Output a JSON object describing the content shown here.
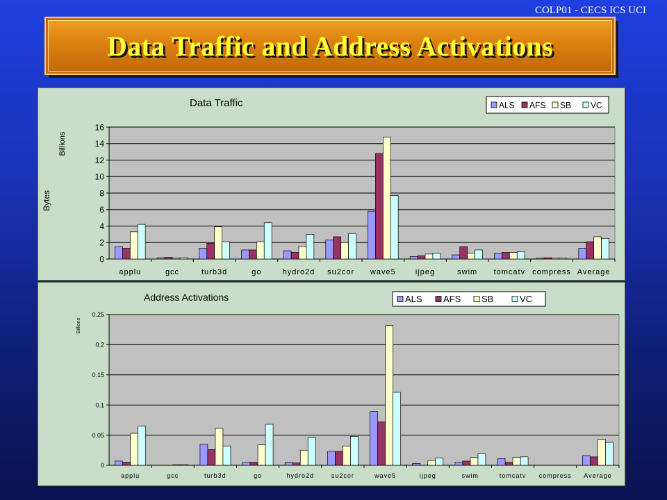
{
  "header_tag": "COLP01 - CECS ICS UCI",
  "slide_title": "Data Traffic and Address Activations",
  "colors": {
    "ALS": "#9999ff",
    "AFS": "#993366",
    "SB": "#ffffcc",
    "VC": "#ccffff",
    "plot_bg": "#c0c0c0",
    "panel_bg": "#c8dec8"
  },
  "chart_data": [
    {
      "type": "bar",
      "title": "Data Traffic",
      "ylabel": "Bytes",
      "yunit": "Billions",
      "ylim": [
        0,
        16
      ],
      "yticks": [
        "0",
        "2",
        "4",
        "6",
        "8",
        "10",
        "12",
        "14",
        "16"
      ],
      "grid": true,
      "legend_position": "top-right",
      "categories": [
        "applu",
        "gcc",
        "turb3d",
        "go",
        "hydro2d",
        "su2cor",
        "wave5",
        "ijpeg",
        "swim",
        "tomcatv",
        "compress",
        "Average"
      ],
      "series": [
        {
          "name": "ALS",
          "values": [
            1.5,
            0.15,
            1.3,
            1.1,
            1.0,
            2.3,
            5.8,
            0.3,
            0.5,
            0.7,
            0.1,
            1.3
          ]
        },
        {
          "name": "AFS",
          "values": [
            1.3,
            0.2,
            1.9,
            1.1,
            0.8,
            2.7,
            12.8,
            0.4,
            1.5,
            0.8,
            0.15,
            2.1
          ]
        },
        {
          "name": "SB",
          "values": [
            3.3,
            0.1,
            3.9,
            2.1,
            1.5,
            2.0,
            14.8,
            0.6,
            0.7,
            0.8,
            0.1,
            2.7
          ]
        },
        {
          "name": "VC",
          "values": [
            4.2,
            0.15,
            2.1,
            4.4,
            3.0,
            3.1,
            7.7,
            0.7,
            1.1,
            0.9,
            0.1,
            2.5
          ]
        }
      ]
    },
    {
      "type": "bar",
      "title": "Address Activations",
      "ylabel": "",
      "yunit": "Billions",
      "ylim": [
        0,
        0.25
      ],
      "yticks": [
        "0",
        "0.05",
        "0.1",
        "0.15",
        "0.2",
        "0.25"
      ],
      "grid": true,
      "legend_position": "top-right",
      "categories": [
        "applu",
        "gcc",
        "turb3d",
        "go",
        "hydro2d",
        "su2cor",
        "wave5",
        "ijpeg",
        "swim",
        "tomcatv",
        "compress",
        "Average"
      ],
      "series": [
        {
          "name": "ALS",
          "values": [
            0.007,
            0.0,
            0.035,
            0.005,
            0.005,
            0.023,
            0.089,
            0.003,
            0.005,
            0.011,
            0.0,
            0.016
          ]
        },
        {
          "name": "AFS",
          "values": [
            0.005,
            0.0,
            0.026,
            0.005,
            0.004,
            0.023,
            0.072,
            0.0,
            0.007,
            0.005,
            0.0,
            0.014
          ]
        },
        {
          "name": "SB",
          "values": [
            0.053,
            0.001,
            0.061,
            0.034,
            0.025,
            0.032,
            0.232,
            0.008,
            0.013,
            0.013,
            0.0,
            0.043
          ]
        },
        {
          "name": "VC",
          "values": [
            0.065,
            0.001,
            0.032,
            0.068,
            0.046,
            0.048,
            0.121,
            0.012,
            0.019,
            0.014,
            0.0,
            0.038
          ]
        }
      ]
    }
  ]
}
